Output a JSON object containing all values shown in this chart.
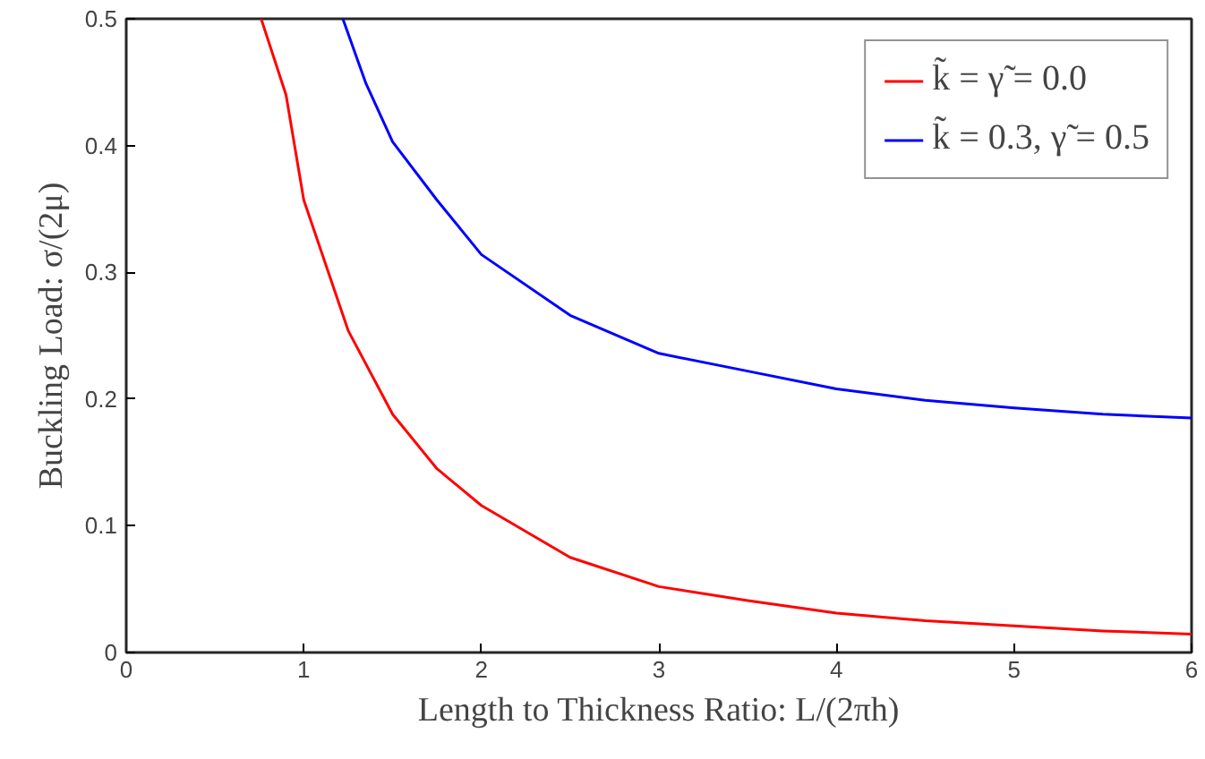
{
  "chart_data": {
    "type": "line",
    "xlabel": "Length to Thickness Ratio: L/(2πh)",
    "ylabel": "Buckling Load: σ/(2μ)",
    "xlim": [
      0,
      6
    ],
    "ylim": [
      0,
      0.5
    ],
    "xticks": [
      0,
      1,
      2,
      3,
      4,
      5,
      6
    ],
    "yticks": [
      0,
      0.1,
      0.2,
      0.3,
      0.4,
      0.5
    ],
    "grid": false,
    "legend": "top right",
    "line_style": "solid",
    "marker": "none",
    "series": [
      {
        "name": "k̃ = γ̃ = 0.0",
        "color": "#ff0000",
        "x": [
          0.76,
          0.9,
          1,
          1.25,
          1.5,
          1.75,
          2,
          2.5,
          3,
          3.5,
          4,
          4.5,
          5,
          5.5,
          6
        ],
        "values": [
          0.5,
          0.44,
          0.357,
          0.254,
          0.188,
          0.145,
          0.116,
          0.075,
          0.052,
          0.041,
          0.031,
          0.025,
          0.021,
          0.017,
          0.0145
        ]
      },
      {
        "name": "k̃ = 0.3, γ̃ = 0.5",
        "color": "#0000ff",
        "x": [
          1.22,
          1.35,
          1.5,
          1.75,
          2,
          2.5,
          3,
          3.5,
          4,
          4.5,
          5,
          5.5,
          6
        ],
        "values": [
          0.5,
          0.449,
          0.403,
          0.357,
          0.314,
          0.266,
          0.236,
          0.222,
          0.208,
          0.199,
          0.193,
          0.188,
          0.185
        ]
      }
    ]
  }
}
